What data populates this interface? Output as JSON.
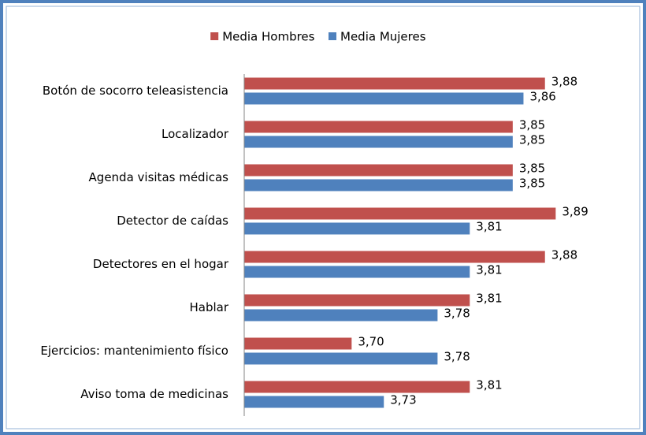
{
  "chart_data": {
    "type": "bar",
    "orientation": "horizontal",
    "categories": [
      "Botón de socorro teleasistencia",
      "Localizador",
      "Agenda visitas médicas",
      "Detector de caídas",
      "Detectores en el hogar",
      "Hablar",
      "Ejercicios: mantenimiento físico",
      "Aviso toma de medicinas"
    ],
    "series": [
      {
        "name": "Media Hombres",
        "color": "#c0504d",
        "values": [
          3.88,
          3.85,
          3.85,
          3.89,
          3.88,
          3.81,
          3.7,
          3.81
        ],
        "value_labels": [
          "3,88",
          "3,85",
          "3,85",
          "3,89",
          "3,88",
          "3,81",
          "3,70",
          "3,81"
        ]
      },
      {
        "name": "Media Mujeres",
        "color": "#4f81bd",
        "values": [
          3.86,
          3.85,
          3.85,
          3.81,
          3.81,
          3.78,
          3.78,
          3.73
        ],
        "value_labels": [
          "3,86",
          "3,85",
          "3,85",
          "3,81",
          "3,81",
          "3,78",
          "3,78",
          "3,73"
        ]
      }
    ],
    "xlim": [
      3.6,
      3.9
    ],
    "legend": "top"
  }
}
